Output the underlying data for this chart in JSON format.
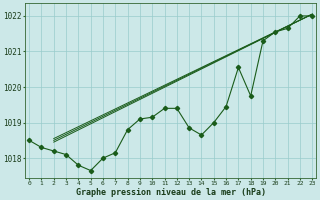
{
  "hours": [
    0,
    1,
    2,
    3,
    4,
    5,
    6,
    7,
    8,
    9,
    10,
    11,
    12,
    13,
    14,
    15,
    16,
    17,
    18,
    19,
    20,
    21,
    22,
    23
  ],
  "pressure_main": [
    1018.5,
    1018.3,
    1018.2,
    1018.1,
    1017.8,
    1017.65,
    1018.0,
    1018.15,
    1018.8,
    1019.1,
    1019.15,
    1019.4,
    1019.4,
    1018.85,
    1018.65,
    1019.0,
    1019.45,
    1020.55,
    1019.75,
    1021.3,
    1021.55,
    1021.65,
    1022.0,
    1022.0
  ],
  "trend1_x": [
    2,
    23
  ],
  "trend1_y": [
    1018.55,
    1022.05
  ],
  "trend2_x": [
    2,
    23
  ],
  "trend2_y": [
    1018.65,
    1022.05
  ],
  "trend3_x": [
    2,
    23
  ],
  "trend3_y": [
    1018.75,
    1022.05
  ],
  "ylim": [
    1017.45,
    1022.35
  ],
  "yticks": [
    1018,
    1019,
    1020,
    1021,
    1022
  ],
  "xlim": [
    -0.3,
    23.3
  ],
  "bg_color": "#cce8e8",
  "grid_color": "#99cccc",
  "line_color": "#1a5c1a",
  "xlabel": "Graphe pression niveau de la mer (hPa)"
}
